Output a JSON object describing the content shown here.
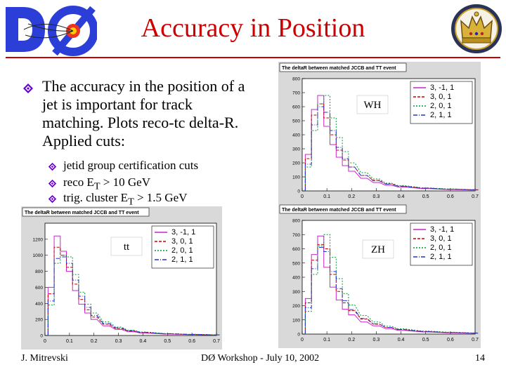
{
  "slide": {
    "title": "Accuracy in Position",
    "main_bullet": "The accuracy in the position of a jet is important for track matching. Plots reco-tc delta-R. Applied cuts:",
    "sub_bullets": [
      {
        "pre": "jetid group certification cuts",
        "sub": "",
        "post": ""
      },
      {
        "pre": "reco E",
        "sub": "T",
        "post": " > 10 GeV"
      },
      {
        "pre": "trig. cluster E",
        "sub": "T",
        "post": " > 1.5 GeV"
      }
    ],
    "footer": {
      "author": "J. Mitrevski",
      "event": "DØ Workshop - July 10, 2002",
      "page": "14"
    }
  },
  "colors": {
    "title": "#cc0000",
    "rule": "#cc0000",
    "bullet": "#6600cc"
  },
  "icons": {
    "logo": "d0-logo",
    "crest": "crown-crest",
    "bullet": "diamond-bullet"
  },
  "chart_data": [
    {
      "type": "line",
      "title": "The deltaR between matched JCCB and TT event",
      "label": "WH",
      "xlim": [
        0,
        0.7
      ],
      "ylim": [
        0,
        800
      ],
      "xticks": [
        "0",
        "0.1",
        "0.2",
        "0.3",
        "0.4",
        "0.5",
        "0.6",
        "0.7"
      ],
      "yticks": [
        "0",
        "100",
        "200",
        "300",
        "400",
        "500",
        "600",
        "700",
        "800"
      ],
      "x": [
        0.025,
        0.05,
        0.075,
        0.1,
        0.125,
        0.15,
        0.175,
        0.2,
        0.25,
        0.3,
        0.35,
        0.4,
        0.5,
        0.6,
        0.7
      ],
      "series": [
        {
          "name": "3, -1, 1",
          "color": "#cc22cc",
          "values": [
            260,
            580,
            680,
            460,
            330,
            240,
            180,
            140,
            90,
            60,
            40,
            28,
            16,
            10,
            6
          ]
        },
        {
          "name": "3, 0, 1",
          "color": "#cc0000",
          "values": [
            230,
            540,
            620,
            520,
            400,
            290,
            220,
            170,
            110,
            75,
            50,
            34,
            20,
            12,
            8
          ]
        },
        {
          "name": "2, 0, 1",
          "color": "#009933",
          "values": [
            170,
            430,
            620,
            680,
            520,
            380,
            280,
            200,
            130,
            85,
            55,
            38,
            22,
            14,
            9
          ]
        },
        {
          "name": "2, 1, 1",
          "color": "#2233cc",
          "values": [
            190,
            470,
            600,
            560,
            430,
            310,
            230,
            170,
            110,
            72,
            48,
            33,
            19,
            12,
            8
          ]
        }
      ]
    },
    {
      "type": "line",
      "title": "The deltaR between matched JCCB and TT event",
      "label": "tt",
      "xlim": [
        0,
        0.7
      ],
      "ylim": [
        0,
        1400
      ],
      "xticks": [
        "0",
        "0.1",
        "0.2",
        "0.3",
        "0.4",
        "0.5",
        "0.6",
        "0.7"
      ],
      "yticks": [
        "0",
        "200",
        "400",
        "600",
        "800",
        "1000",
        "1200"
      ],
      "x": [
        0.025,
        0.05,
        0.075,
        0.1,
        0.125,
        0.15,
        0.175,
        0.2,
        0.25,
        0.3,
        0.35,
        0.4,
        0.5,
        0.6,
        0.7
      ],
      "series": [
        {
          "name": "3, -1, 1",
          "color": "#cc22cc",
          "values": [
            600,
            1240,
            1050,
            800,
            560,
            390,
            280,
            200,
            120,
            75,
            48,
            32,
            18,
            11,
            7
          ]
        },
        {
          "name": "3, 0, 1",
          "color": "#cc0000",
          "values": [
            520,
            1100,
            1000,
            850,
            640,
            450,
            320,
            230,
            140,
            88,
            56,
            37,
            21,
            13,
            8
          ]
        },
        {
          "name": "2, 0, 1",
          "color": "#009933",
          "values": [
            380,
            900,
            1000,
            980,
            760,
            540,
            390,
            280,
            170,
            105,
            66,
            43,
            24,
            15,
            9
          ]
        },
        {
          "name": "2, 1, 1",
          "color": "#2233cc",
          "values": [
            430,
            960,
            980,
            900,
            690,
            490,
            350,
            250,
            150,
            95,
            60,
            40,
            22,
            14,
            8
          ]
        }
      ]
    },
    {
      "type": "line",
      "title": "The deltaR between matched JCCB and TT event",
      "label": "ZH",
      "xlim": [
        0,
        0.7
      ],
      "ylim": [
        0,
        800
      ],
      "xticks": [
        "0",
        "0.1",
        "0.2",
        "0.3",
        "0.4",
        "0.5",
        "0.6",
        "0.7"
      ],
      "yticks": [
        "0",
        "100",
        "200",
        "300",
        "400",
        "500",
        "600",
        "700",
        "800"
      ],
      "x": [
        0.025,
        0.05,
        0.075,
        0.1,
        0.125,
        0.15,
        0.175,
        0.2,
        0.25,
        0.3,
        0.35,
        0.4,
        0.5,
        0.6,
        0.7
      ],
      "series": [
        {
          "name": "3, -1, 1",
          "color": "#cc22cc",
          "values": [
            250,
            560,
            690,
            470,
            330,
            240,
            175,
            135,
            85,
            58,
            38,
            26,
            15,
            9,
            6
          ]
        },
        {
          "name": "3, 0, 1",
          "color": "#cc0000",
          "values": [
            220,
            520,
            630,
            600,
            420,
            300,
            220,
            165,
            105,
            70,
            46,
            32,
            18,
            11,
            7
          ]
        },
        {
          "name": "2, 0, 1",
          "color": "#009933",
          "values": [
            160,
            420,
            620,
            700,
            540,
            390,
            285,
            205,
            130,
            85,
            55,
            37,
            21,
            13,
            8
          ]
        },
        {
          "name": "2, 1, 1",
          "color": "#2233cc",
          "values": [
            185,
            460,
            610,
            580,
            440,
            320,
            235,
            172,
            110,
            72,
            47,
            32,
            18,
            11,
            7
          ]
        }
      ]
    }
  ]
}
